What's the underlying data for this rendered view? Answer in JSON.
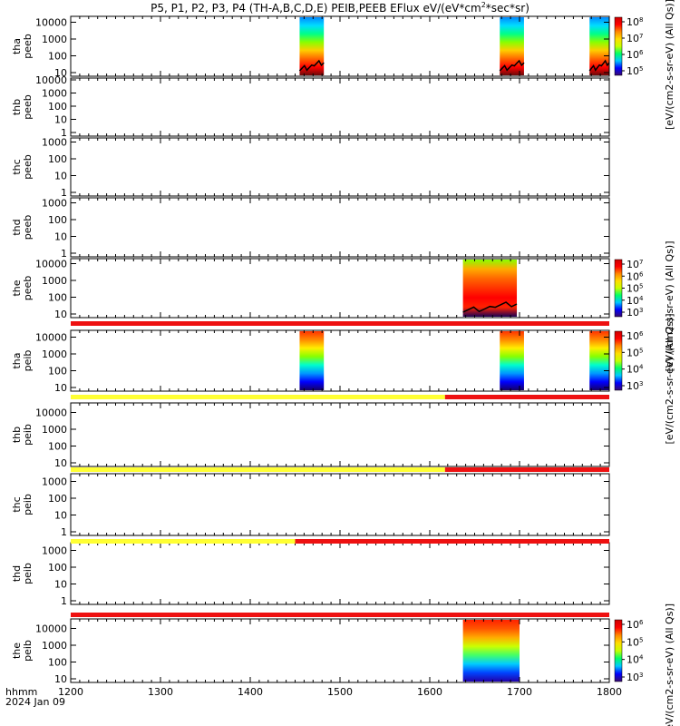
{
  "title": "P5, P1, P2, P3, P4 (TH-A,B,C,D,E) PEIB,PEEB EFlux eV/(eV*cm",
  "title_sup": "2",
  "title_tail": "*sec*sr)",
  "footer": {
    "line1": "hhmm",
    "line2": "2024 Jan 09"
  },
  "colors": {
    "red_bar": "#ee1111",
    "yellow_bar": "#ffff33",
    "black_line": "#000000",
    "colormap": [
      "#3a0a6e",
      "#0000ff",
      "#00c8ff",
      "#00ff66",
      "#c8ff00",
      "#ffdd00",
      "#ff8800",
      "#ff0000",
      "#cc0000"
    ]
  },
  "chart_data": {
    "type": "heatmap",
    "x_label": "hhmm",
    "x_range": [
      1200,
      1800
    ],
    "x_ticks": [
      "1200",
      "1300",
      "1400",
      "1500",
      "1600",
      "1700",
      "1800"
    ],
    "panels": [
      {
        "probe_label": "tha",
        "inst_label": "peeb",
        "y_ticks": [
          "10",
          "100",
          "1000",
          "10000"
        ],
        "y_log": true,
        "spectrogram_intervals": [
          [
            1455,
            1482
          ],
          [
            1678,
            1705
          ],
          [
            1778,
            1800
          ]
        ],
        "colorbar": {
          "label": "[eV/(cm2-s-sr-eV) (All Qs)]",
          "ticks": [
            "10^5",
            "10^6",
            "10^7",
            "10^8"
          ]
        },
        "black_trace": true
      },
      {
        "probe_label": "thb",
        "inst_label": "peeb",
        "y_ticks": [
          "1",
          "10",
          "100",
          "1000",
          "10000"
        ],
        "y_log": true,
        "spectrogram_intervals": []
      },
      {
        "probe_label": "thc",
        "inst_label": "peeb",
        "y_ticks": [
          "1",
          "10",
          "100",
          "1000"
        ],
        "y_log": true,
        "spectrogram_intervals": []
      },
      {
        "probe_label": "thd",
        "inst_label": "peeb",
        "y_ticks": [
          "1",
          "10",
          "100",
          "1000"
        ],
        "y_log": true,
        "spectrogram_intervals": []
      },
      {
        "probe_label": "the",
        "inst_label": "peeb",
        "y_ticks": [
          "10",
          "100",
          "1000",
          "10000"
        ],
        "y_log": true,
        "spectrogram_intervals": [
          [
            1637,
            1697
          ]
        ],
        "colorbar": {
          "label": "[eV/(cm2-s-sr-eV) (All Qs)]",
          "ticks": [
            "10^3",
            "10^4",
            "10^5",
            "10^6",
            "10^7"
          ]
        },
        "black_trace": true
      },
      {
        "probe_label": "tha",
        "inst_label": "peib",
        "y_ticks": [
          "10",
          "100",
          "1000",
          "10000"
        ],
        "y_log": true,
        "spectrogram_intervals": [
          [
            1455,
            1482
          ],
          [
            1678,
            1705
          ],
          [
            1778,
            1800
          ]
        ],
        "colorbar": {
          "label": "[eV/(cm2-s-sr-eV) (All Qs)]",
          "ticks": [
            "10^3",
            "10^4",
            "10^5",
            "10^6"
          ]
        }
      },
      {
        "probe_label": "thb",
        "inst_label": "peib",
        "y_ticks": [
          "10",
          "100",
          "1000",
          "10000"
        ],
        "y_log": true,
        "spectrogram_intervals": []
      },
      {
        "probe_label": "thc",
        "inst_label": "peib",
        "y_ticks": [
          "1",
          "10",
          "100",
          "1000"
        ],
        "y_log": true,
        "spectrogram_intervals": []
      },
      {
        "probe_label": "thd",
        "inst_label": "peib",
        "y_ticks": [
          "1",
          "10",
          "100",
          "1000"
        ],
        "y_log": true,
        "spectrogram_intervals": []
      },
      {
        "probe_label": "the",
        "inst_label": "peib",
        "y_ticks": [
          "10",
          "100",
          "1000",
          "10000"
        ],
        "y_log": true,
        "spectrogram_intervals": [
          [
            1637,
            1700
          ]
        ],
        "colorbar": {
          "label": "[eV/(cm2-s-sr-eV) (All Qs)]",
          "ticks": [
            "10^3",
            "10^4",
            "10^5",
            "10^6"
          ]
        }
      }
    ],
    "status_bars": [
      {
        "after_panel": 4,
        "segments": [
          {
            "from": 1200,
            "to": 1800,
            "color": "red"
          }
        ]
      },
      {
        "after_panel": 5,
        "segments": [
          {
            "from": 1200,
            "to": 1617,
            "color": "yellow"
          },
          {
            "from": 1617,
            "to": 1800,
            "color": "red"
          }
        ]
      },
      {
        "after_panel": 6,
        "segments": [
          {
            "from": 1200,
            "to": 1617,
            "color": "yellow"
          },
          {
            "from": 1617,
            "to": 1800,
            "color": "red"
          }
        ]
      },
      {
        "after_panel": 7,
        "segments": [
          {
            "from": 1200,
            "to": 1450,
            "color": "yellow"
          },
          {
            "from": 1450,
            "to": 1800,
            "color": "red"
          }
        ]
      },
      {
        "after_panel": 8,
        "segments": [
          {
            "from": 1200,
            "to": 1800,
            "color": "red"
          }
        ]
      }
    ]
  }
}
